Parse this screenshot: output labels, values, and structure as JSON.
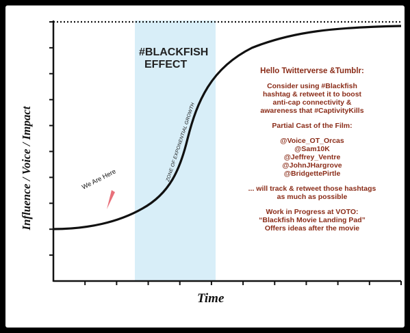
{
  "chart_data": {
    "type": "line",
    "title": "",
    "xlabel": "Time",
    "ylabel": "Influence / Voice / Impact",
    "x_ticks": 11,
    "y_ticks": 10,
    "grid": false,
    "curve": "s-curve (sigmoid) rising from low-left to plateau near the dotted top line",
    "highlight_band": {
      "label": "ZONE OF EXPONENTIAL GROWTH",
      "color": "#d8eef8"
    },
    "marker": {
      "label": "We Are Here",
      "color": "#e8707a"
    }
  },
  "heading": {
    "line1": "#BLACKFISH",
    "line2": "EFFECT"
  },
  "notes": {
    "greeting": "Hello Twitterverse &Tumblr:",
    "consider": [
      "Consider using #Blackfish",
      "hashtag & retweet it to boost",
      "anti-cap connectivity &",
      "awareness that #CaptivityKills"
    ],
    "cast_title": "Partial Cast of the Film:",
    "cast": [
      "@Voice_OT_Orcas",
      "@Sam10K",
      "@Jeffrey_Ventre",
      "@JohnJHargrove",
      "@BridgettePirtle"
    ],
    "track": [
      "... will track & retweet those hashtags",
      "as much as possible"
    ],
    "wip": [
      "Work in Progress at VOTO:",
      "“Blackfish Movie Landing Pad”",
      "Offers ideas after the movie"
    ]
  },
  "colors": {
    "band": "#d8eef8",
    "marker": "#e8707a",
    "notes_text": "#8a2c18"
  }
}
